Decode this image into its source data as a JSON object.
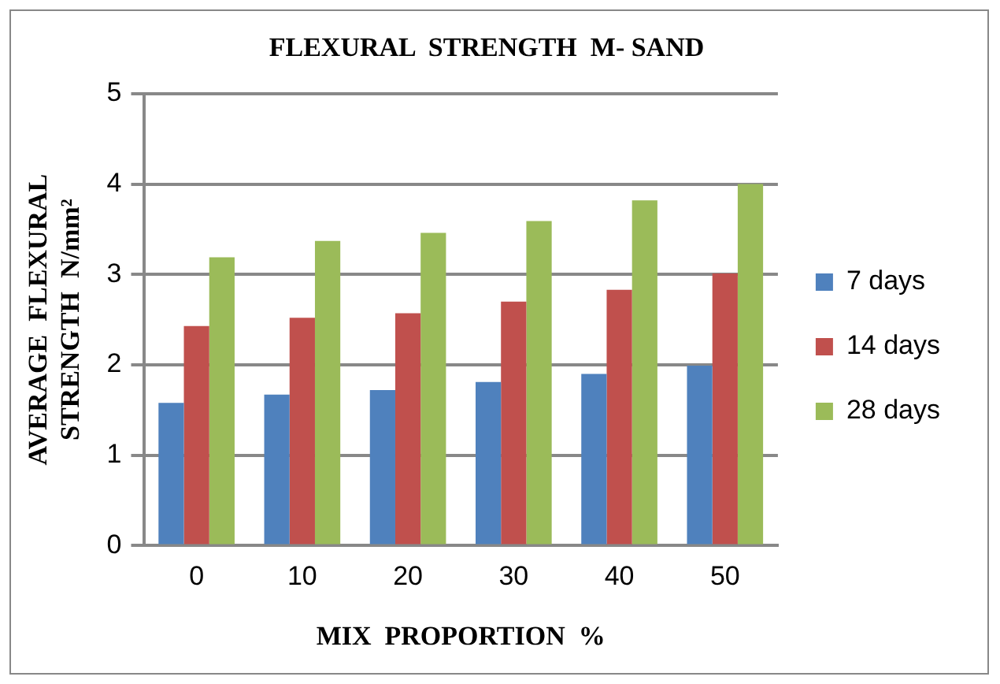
{
  "chart_data": {
    "type": "bar",
    "title": "FLEXURAL  STRENGTH  M- SAND",
    "xlabel": "MIX  PROPORTION  %",
    "ylabel": "AVERAGE  FLEXURAL  STRENGTH  N/mm²",
    "categories": [
      "0",
      "10",
      "20",
      "30",
      "40",
      "50"
    ],
    "series": [
      {
        "name": "7 days",
        "color": "#4f81bd",
        "values": [
          1.58,
          1.67,
          1.72,
          1.81,
          1.9,
          1.99
        ]
      },
      {
        "name": "14 days",
        "color": "#c0504d",
        "values": [
          2.43,
          2.52,
          2.57,
          2.7,
          2.83,
          3.01
        ]
      },
      {
        "name": "28 days",
        "color": "#9bbb59",
        "values": [
          3.19,
          3.37,
          3.46,
          3.59,
          3.82,
          4.0
        ]
      }
    ],
    "ylim": [
      0,
      5
    ],
    "yticks": [
      0,
      1,
      2,
      3,
      4,
      5
    ],
    "grid": "y",
    "legend": "right"
  }
}
